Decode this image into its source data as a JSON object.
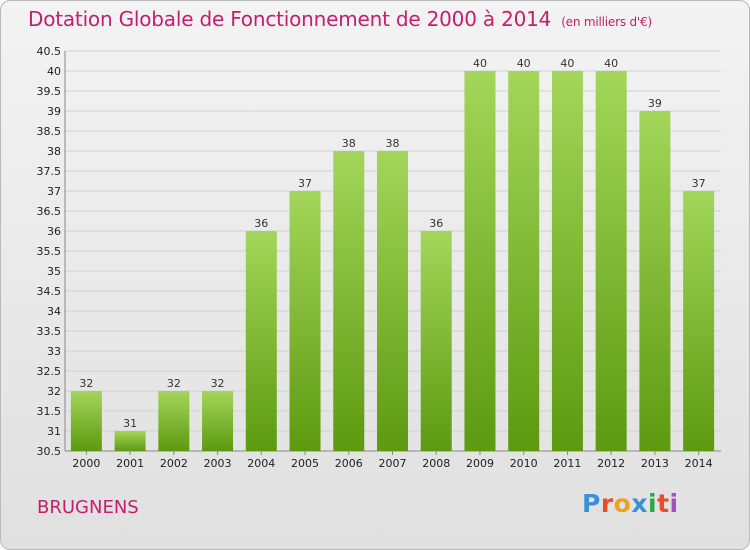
{
  "title": "Dotation Globale de Fonctionnement de 2000 à 2014",
  "unit": "(en milliers d'€)",
  "commune": "BRUGNENS",
  "logo": "Proxiti",
  "colors": {
    "title": "#c41e6e",
    "bar_light": "#a3d65a",
    "bar_dark": "#5d9a10",
    "logo": [
      "#3b8fd6",
      "#e94e2a",
      "#f0a020",
      "#3b8fd6",
      "#2aa84a",
      "#e94e2a",
      "#a24fc0"
    ]
  },
  "chart_data": {
    "type": "bar",
    "title": "Dotation Globale de Fonctionnement de 2000 à 2014",
    "subtitle": "(en milliers d'€)",
    "xlabel": "",
    "ylabel": "",
    "categories": [
      "2000",
      "2001",
      "2002",
      "2003",
      "2004",
      "2005",
      "2006",
      "2007",
      "2008",
      "2009",
      "2010",
      "2011",
      "2012",
      "2013",
      "2014"
    ],
    "values": [
      32,
      31,
      32,
      32,
      36,
      37,
      38,
      38,
      36,
      40,
      40,
      40,
      40,
      39,
      37
    ],
    "ylim": [
      30.5,
      40.5
    ],
    "yticks": [
      "30.5",
      "31",
      "31.5",
      "32",
      "32.5",
      "33",
      "33.5",
      "34",
      "34.5",
      "35",
      "35.5",
      "36",
      "36.5",
      "37",
      "37.5",
      "38",
      "38.5",
      "39",
      "39.5",
      "40",
      "40.5"
    ],
    "grid": true,
    "legend": "none"
  }
}
